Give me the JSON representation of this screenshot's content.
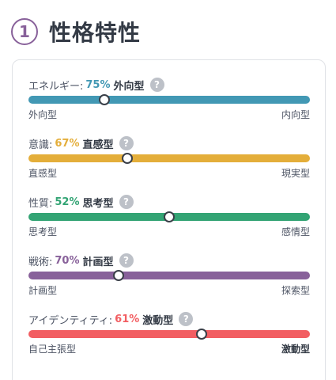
{
  "header": {
    "step": "1",
    "title": "性格特性"
  },
  "help_glyph": "?",
  "traits": [
    {
      "name": "エネルギー:",
      "percent": "75%",
      "dominant": "外向型",
      "left_label": "外向型",
      "right_label": "内向型",
      "color": "#4298b4",
      "knob_fraction": 0.27,
      "dominant_side": "left"
    },
    {
      "name": "意識:",
      "percent": "67%",
      "dominant": "直感型",
      "left_label": "直感型",
      "right_label": "現実型",
      "color": "#e4ae3a",
      "knob_fraction": 0.35,
      "dominant_side": "left"
    },
    {
      "name": "性質:",
      "percent": "52%",
      "dominant": "思考型",
      "left_label": "思考型",
      "right_label": "感情型",
      "color": "#33a474",
      "knob_fraction": 0.5,
      "dominant_side": "left"
    },
    {
      "name": "戦術:",
      "percent": "70%",
      "dominant": "計画型",
      "left_label": "計画型",
      "right_label": "探索型",
      "color": "#88619a",
      "knob_fraction": 0.32,
      "dominant_side": "left"
    },
    {
      "name": "アイデンティティ:",
      "percent": "61%",
      "dominant": "激動型",
      "left_label": "自己主張型",
      "right_label": "激動型",
      "color": "#f25e62",
      "knob_fraction": 0.615,
      "dominant_side": "right"
    }
  ]
}
